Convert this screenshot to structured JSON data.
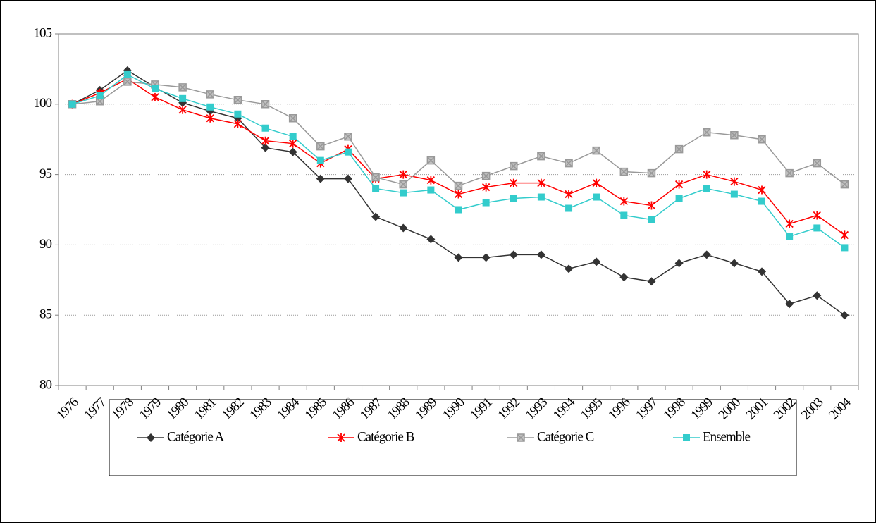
{
  "chart_data": {
    "type": "line",
    "categories": [
      "1976",
      "1977",
      "1978",
      "1979",
      "1980",
      "1981",
      "1982",
      "1983",
      "1984",
      "1985",
      "1986",
      "1987",
      "1988",
      "1989",
      "1990",
      "1991",
      "1992",
      "1993",
      "1994",
      "1995",
      "1996",
      "1997",
      "1998",
      "1999",
      "2000",
      "2001",
      "2002",
      "2003",
      "2004"
    ],
    "series": [
      {
        "name": "Catégorie A",
        "color": "#333333",
        "marker": "diamond",
        "values": [
          100,
          101,
          102.4,
          101.2,
          100.1,
          99.5,
          99.0,
          96.9,
          96.6,
          94.7,
          94.7,
          92.0,
          91.2,
          90.4,
          89.1,
          89.1,
          89.3,
          89.3,
          88.3,
          88.8,
          87.7,
          87.4,
          88.7,
          89.3,
          88.7,
          88.1,
          85.8,
          86.4,
          85.0
        ]
      },
      {
        "name": "Catégorie B",
        "color": "#ff0000",
        "marker": "star",
        "values": [
          100,
          100.8,
          101.8,
          100.5,
          99.6,
          99.0,
          98.6,
          97.4,
          97.2,
          95.8,
          96.8,
          94.7,
          95.0,
          94.6,
          93.6,
          94.1,
          94.4,
          94.4,
          93.6,
          94.4,
          93.1,
          92.8,
          94.3,
          95.0,
          94.5,
          93.9,
          91.5,
          92.1,
          90.7
        ]
      },
      {
        "name": "Catégorie C",
        "color": "#999999",
        "marker": "xsquare",
        "values": [
          100,
          100.2,
          101.6,
          101.4,
          101.2,
          100.7,
          100.3,
          100.0,
          99.0,
          97.0,
          97.7,
          94.8,
          94.3,
          96.0,
          94.2,
          94.9,
          95.6,
          96.3,
          95.8,
          96.7,
          95.2,
          95.1,
          96.8,
          98.0,
          97.8,
          97.5,
          95.1,
          95.8,
          94.3
        ]
      },
      {
        "name": "Ensemble",
        "color": "#33cccc",
        "marker": "square",
        "values": [
          100,
          100.6,
          102.1,
          101.1,
          100.4,
          99.8,
          99.3,
          98.3,
          97.7,
          96.0,
          96.6,
          94.0,
          93.7,
          93.9,
          92.5,
          93.0,
          93.3,
          93.4,
          92.6,
          93.4,
          92.1,
          91.8,
          93.3,
          94.0,
          93.6,
          93.1,
          90.6,
          91.2,
          89.8
        ]
      }
    ],
    "ylim": [
      80,
      105
    ],
    "yticks": [
      80,
      85,
      90,
      95,
      100,
      105
    ],
    "grid": true,
    "legend": "bottom"
  }
}
